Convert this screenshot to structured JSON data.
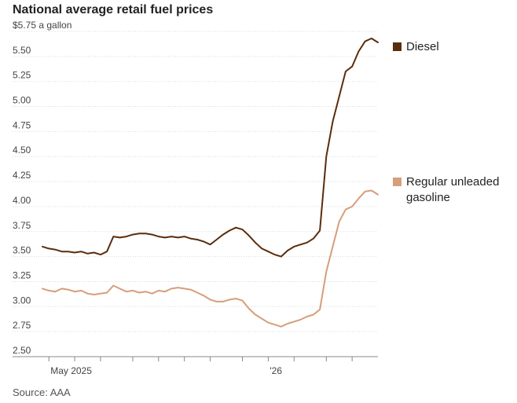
{
  "title": "National average retail fuel prices",
  "source": "Source: AAA",
  "chart_data": {
    "type": "line",
    "title": "National average retail fuel prices",
    "ylabel": "$5.75 a gallon",
    "ylim": [
      2.5,
      5.75
    ],
    "y_ticks": [
      {
        "value": 5.75,
        "label": "$5.75 a gallon"
      },
      {
        "value": 5.5,
        "label": "5.50"
      },
      {
        "value": 5.25,
        "label": "5.25"
      },
      {
        "value": 5.0,
        "label": "5.00"
      },
      {
        "value": 4.75,
        "label": "4.75"
      },
      {
        "value": 4.5,
        "label": "4.50"
      },
      {
        "value": 4.25,
        "label": "4.25"
      },
      {
        "value": 4.0,
        "label": "4.00"
      },
      {
        "value": 3.75,
        "label": "3.75"
      },
      {
        "value": 3.5,
        "label": "3.50"
      },
      {
        "value": 3.25,
        "label": "3.25"
      },
      {
        "value": 3.0,
        "label": "3.00"
      },
      {
        "value": 2.75,
        "label": "2.75"
      },
      {
        "value": 2.5,
        "label": "2.50"
      }
    ],
    "xlim": [
      0,
      52
    ],
    "x_ticks": [
      1,
      5,
      9,
      14,
      18,
      22,
      26,
      31,
      35,
      39,
      44,
      48
    ],
    "x_labels": [
      {
        "at": 1,
        "label": "May 2025"
      },
      {
        "at": 35,
        "label": "'26"
      }
    ],
    "series": [
      {
        "name": "Diesel",
        "legend_label": [
          "Diesel"
        ],
        "color": "#5a2d0c",
        "x": [
          0,
          1,
          2,
          3,
          4,
          5,
          6,
          7,
          8,
          9,
          10,
          11,
          12,
          13,
          14,
          15,
          16,
          17,
          18,
          19,
          20,
          21,
          22,
          23,
          24,
          25,
          26,
          27,
          28,
          29,
          30,
          31,
          32,
          33,
          34,
          35,
          36,
          37,
          38,
          39,
          40,
          41,
          42,
          43,
          44,
          45,
          46,
          47,
          48,
          49,
          50,
          51,
          52
        ],
        "values": [
          3.6,
          3.58,
          3.57,
          3.55,
          3.55,
          3.54,
          3.55,
          3.53,
          3.54,
          3.52,
          3.55,
          3.7,
          3.69,
          3.7,
          3.72,
          3.73,
          3.73,
          3.72,
          3.7,
          3.69,
          3.7,
          3.69,
          3.7,
          3.68,
          3.67,
          3.65,
          3.62,
          3.67,
          3.72,
          3.76,
          3.79,
          3.77,
          3.71,
          3.64,
          3.58,
          3.55,
          3.52,
          3.5,
          3.56,
          3.6,
          3.62,
          3.64,
          3.68,
          3.76,
          4.5,
          4.85,
          5.1,
          5.35,
          5.4,
          5.55,
          5.65,
          5.68,
          5.64
        ]
      },
      {
        "name": "Regular unleaded gasoline",
        "legend_label": [
          "Regular unleaded",
          "gasoline"
        ],
        "color": "#d69e7a",
        "x": [
          0,
          1,
          2,
          3,
          4,
          5,
          6,
          7,
          8,
          9,
          10,
          11,
          12,
          13,
          14,
          15,
          16,
          17,
          18,
          19,
          20,
          21,
          22,
          23,
          24,
          25,
          26,
          27,
          28,
          29,
          30,
          31,
          32,
          33,
          34,
          35,
          36,
          37,
          38,
          39,
          40,
          41,
          42,
          43,
          44,
          45,
          46,
          47,
          48,
          49,
          50,
          51,
          52
        ],
        "values": [
          3.18,
          3.16,
          3.15,
          3.18,
          3.17,
          3.15,
          3.16,
          3.13,
          3.12,
          3.13,
          3.14,
          3.21,
          3.18,
          3.15,
          3.16,
          3.14,
          3.15,
          3.13,
          3.16,
          3.15,
          3.18,
          3.19,
          3.18,
          3.17,
          3.14,
          3.11,
          3.07,
          3.05,
          3.05,
          3.07,
          3.08,
          3.06,
          2.98,
          2.92,
          2.88,
          2.84,
          2.82,
          2.8,
          2.83,
          2.85,
          2.87,
          2.9,
          2.92,
          2.97,
          3.35,
          3.6,
          3.85,
          3.97,
          4.0,
          4.08,
          4.15,
          4.16,
          4.12
        ]
      }
    ]
  }
}
